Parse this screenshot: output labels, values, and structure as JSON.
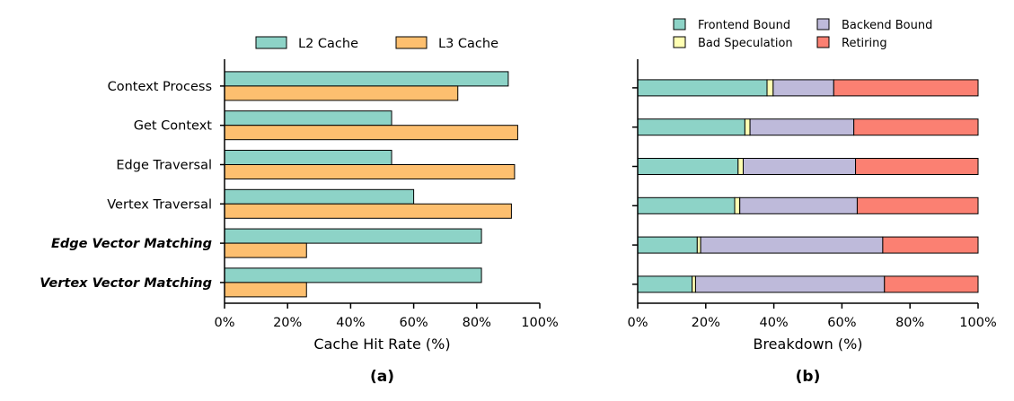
{
  "chart_data": [
    {
      "type": "bar",
      "orientation": "horizontal",
      "panel_label": "(a)",
      "xlabel": "Cache Hit Rate (%)",
      "xlim": [
        0,
        100
      ],
      "xticks": [
        "0%",
        "20%",
        "40%",
        "60%",
        "80%",
        "100%"
      ],
      "categories": [
        {
          "label": "Context Process",
          "emphasis": false
        },
        {
          "label": "Get Context",
          "emphasis": false
        },
        {
          "label": "Edge Traversal",
          "emphasis": false
        },
        {
          "label": "Vertex Traversal",
          "emphasis": false
        },
        {
          "label": "Edge Vector Matching",
          "emphasis": true
        },
        {
          "label": "Vertex Vector Matching",
          "emphasis": true
        }
      ],
      "series": [
        {
          "name": "L2 Cache",
          "color": "#8dd3c7",
          "values": [
            90,
            53,
            53,
            60,
            81.5,
            81.5
          ]
        },
        {
          "name": "L3 Cache",
          "color": "#fdbf6f",
          "values": [
            74,
            93,
            92,
            91,
            26,
            26
          ]
        }
      ],
      "legend_placement": "top"
    },
    {
      "type": "bar",
      "orientation": "horizontal",
      "stacked": true,
      "panel_label": "(b)",
      "xlabel": "Breakdown (%)",
      "xlim": [
        0,
        100
      ],
      "xticks": [
        "0%",
        "20%",
        "40%",
        "60%",
        "80%",
        "100%"
      ],
      "categories": [
        "Context Process",
        "Get Context",
        "Edge Traversal",
        "Vertex Traversal",
        "Edge Vector Matching",
        "Vertex Vector Matching"
      ],
      "series": [
        {
          "name": "Frontend Bound",
          "color": "#8dd3c7",
          "values": [
            38,
            31.5,
            29.5,
            28.5,
            17.5,
            16
          ]
        },
        {
          "name": "Bad Speculation",
          "color": "#ffffb3",
          "values": [
            1.8,
            1.5,
            1.5,
            1.5,
            1,
            1
          ]
        },
        {
          "name": "Backend Bound",
          "color": "#bebada",
          "values": [
            17.8,
            30.5,
            33,
            34.5,
            53.5,
            55.5
          ]
        },
        {
          "name": "Retiring",
          "color": "#fb8072",
          "values": [
            42.4,
            36.5,
            36,
            35.5,
            28,
            27.5
          ]
        }
      ],
      "legend_placement": "top"
    }
  ]
}
